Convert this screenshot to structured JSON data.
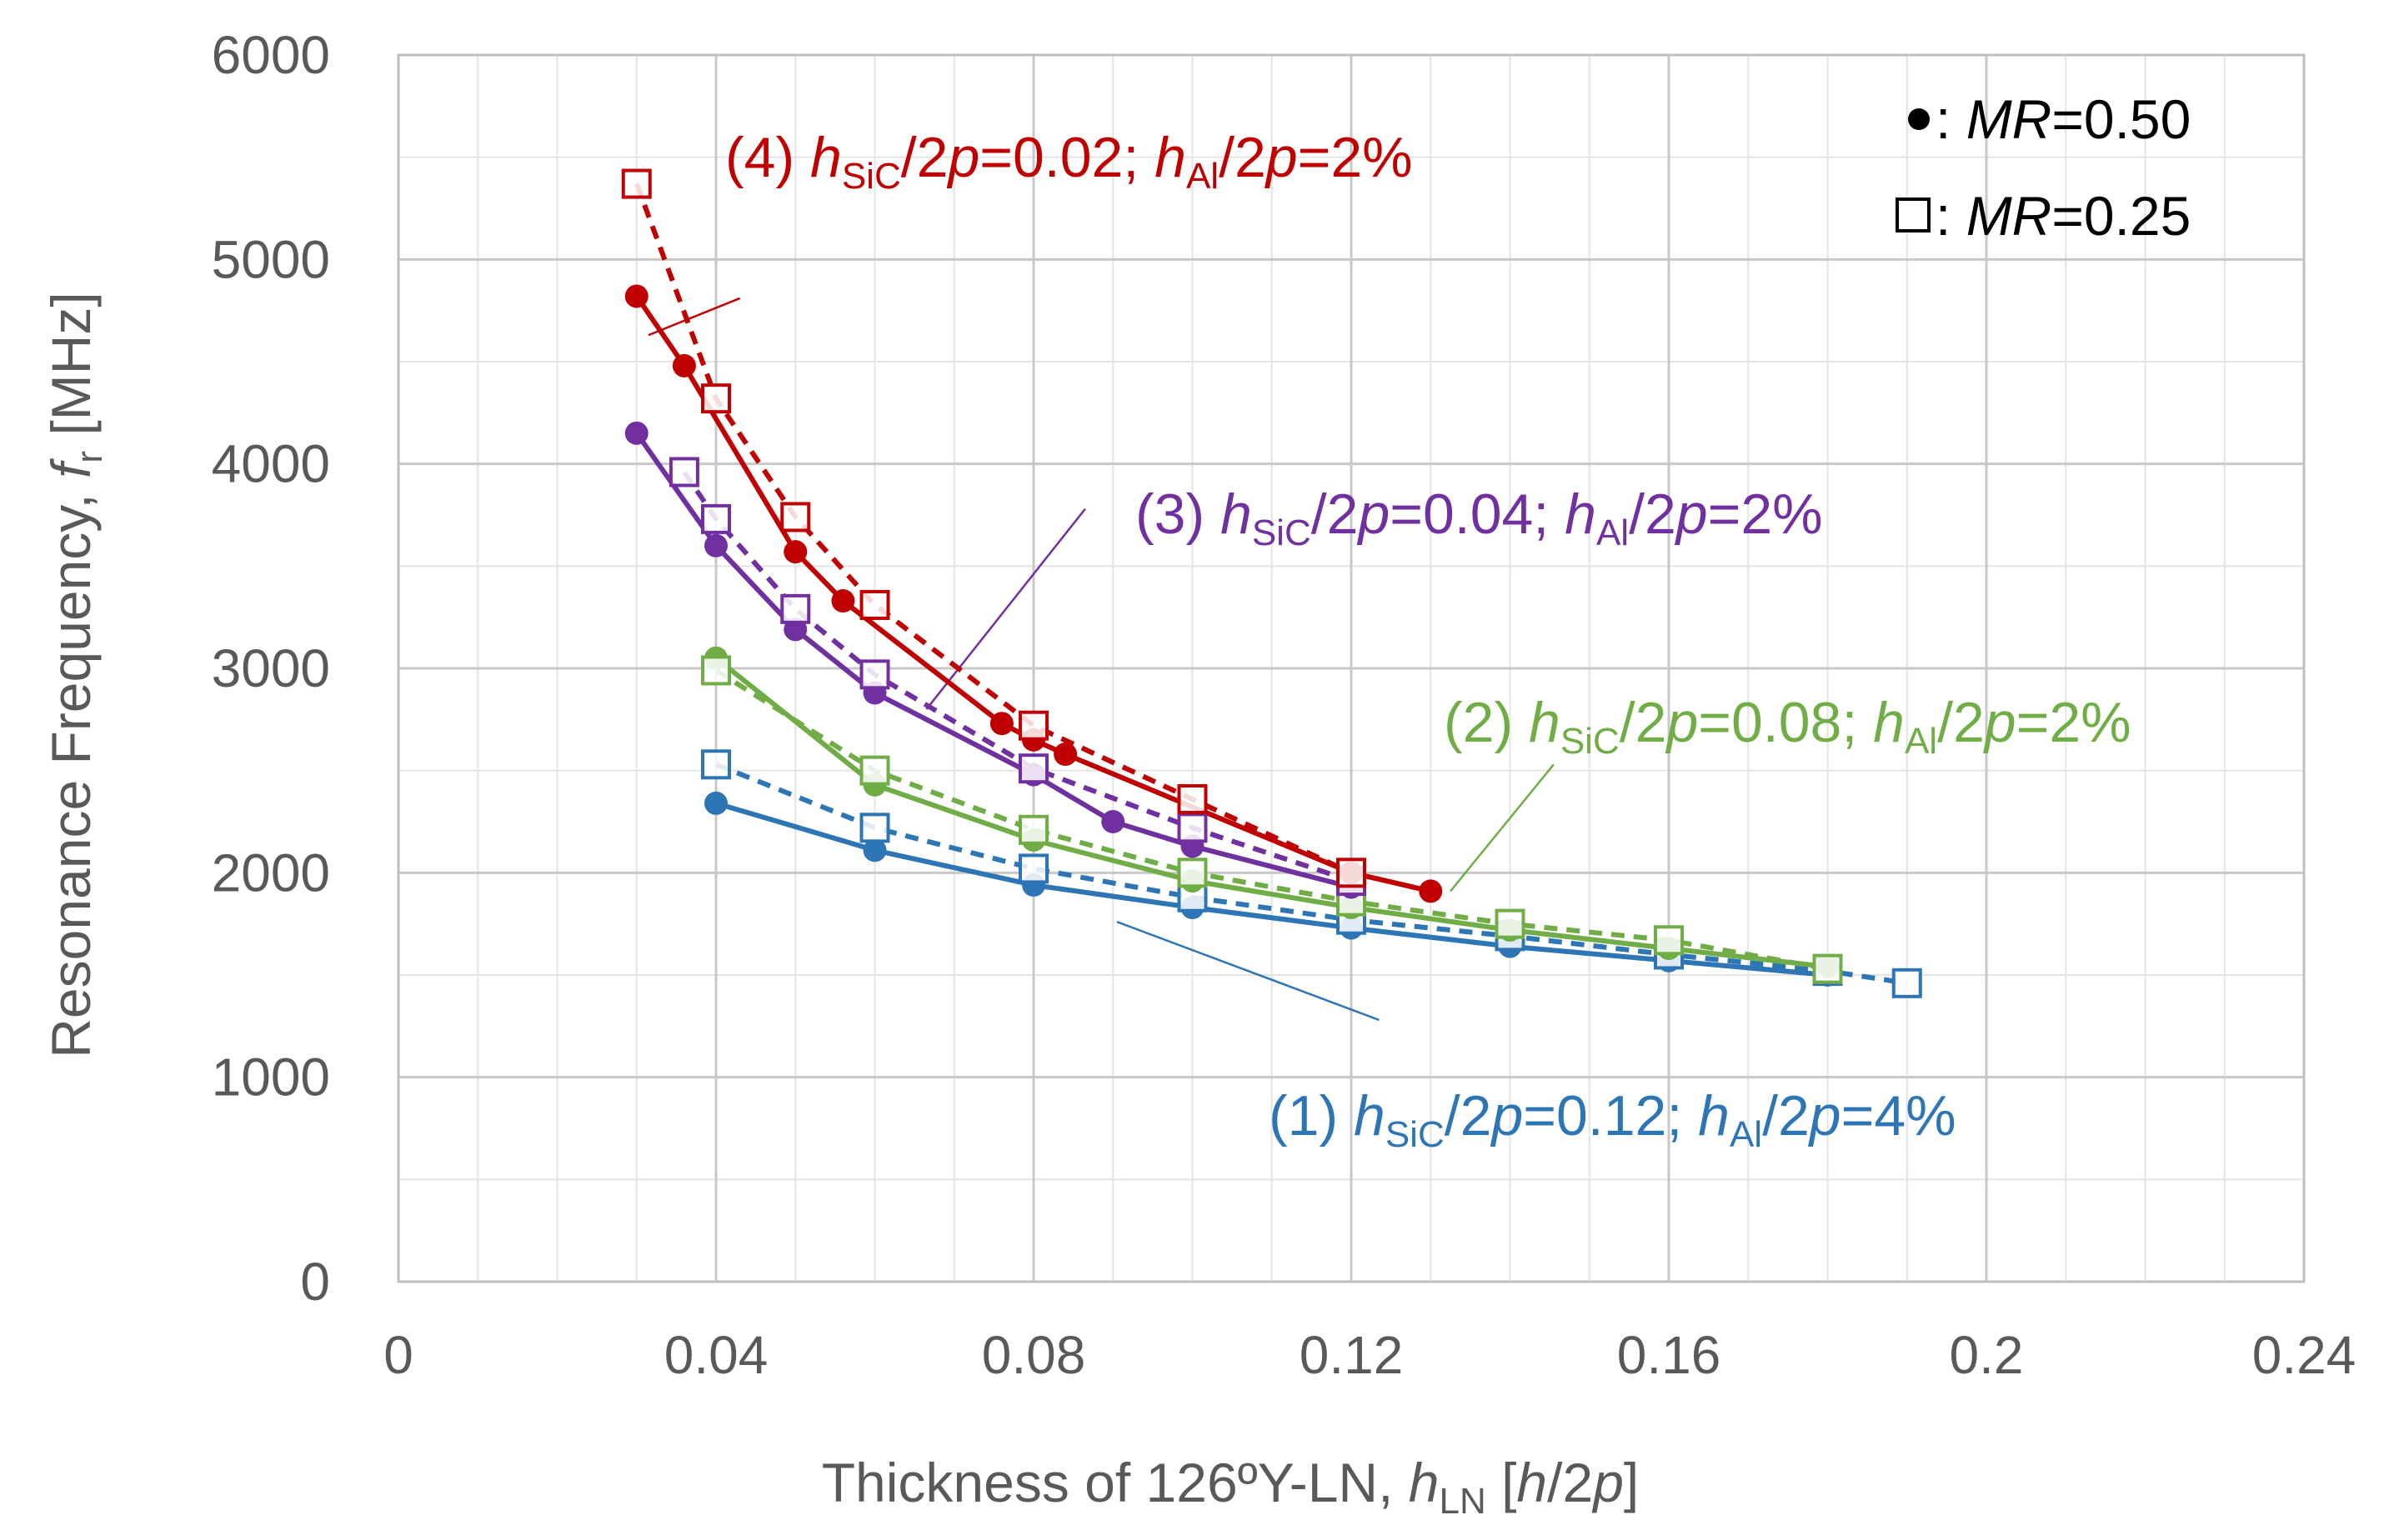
{
  "chart_data": {
    "type": "line",
    "title": "",
    "xlabel": {
      "main": "Thickness of 126ºY-LN, ",
      "var": "h",
      "sub": "LN",
      "unit_open": " [",
      "unit_var": "h",
      "unit_rest": "/2",
      "unit_p": "p",
      "unit_close": "]"
    },
    "ylabel": {
      "main": "Resonance Frequency, ",
      "var": "f",
      "sub": "r",
      "unit": "  [MHz]"
    },
    "xlim": [
      0,
      0.24
    ],
    "ylim": [
      0,
      6000
    ],
    "x_major_ticks": [
      0,
      0.04,
      0.08,
      0.12,
      0.16,
      0.2,
      0.24
    ],
    "x_tick_labels": [
      "0",
      "0.04",
      "0.08",
      "0.12",
      "0.16",
      "0.2",
      "0.24"
    ],
    "x_minor_step": 0.01,
    "y_major_ticks": [
      0,
      1000,
      2000,
      3000,
      4000,
      5000,
      6000
    ],
    "y_tick_labels": [
      "0",
      "1000",
      "2000",
      "3000",
      "4000",
      "5000",
      "6000"
    ],
    "y_minor_step": 500,
    "grid": true,
    "legend": {
      "position": "top-right",
      "entries": [
        {
          "marker": "filled-circle",
          "prefix": " : ",
          "var": "MR",
          "value": "=0.50"
        },
        {
          "marker": "open-square",
          "prefix": " : ",
          "var": "MR",
          "value": "=0.25"
        }
      ]
    },
    "series": [
      {
        "name": "(1) MR=0.50",
        "group": 1,
        "mr": "0.50",
        "color": "#2E75B6",
        "marker": "circle",
        "dash": false,
        "x": [
          0.04,
          0.06,
          0.08,
          0.1,
          0.12,
          0.14,
          0.16,
          0.18
        ],
        "y": [
          2340,
          2110,
          1940,
          1830,
          1730,
          1640,
          1570,
          1500
        ]
      },
      {
        "name": "(1) MR=0.25",
        "group": 1,
        "mr": "0.25",
        "color": "#2E75B6",
        "marker": "square",
        "dash": true,
        "x": [
          0.04,
          0.06,
          0.08,
          0.1,
          0.12,
          0.14,
          0.16,
          0.18,
          0.19
        ],
        "y": [
          2530,
          2220,
          2020,
          1880,
          1770,
          1690,
          1600,
          1520,
          1460
        ]
      },
      {
        "name": "(2) MR=0.50",
        "group": 2,
        "mr": "0.50",
        "color": "#70AD47",
        "marker": "circle",
        "dash": false,
        "x": [
          0.04,
          0.06,
          0.08,
          0.1,
          0.12,
          0.14,
          0.16,
          0.18
        ],
        "y": [
          3050,
          2430,
          2160,
          1960,
          1830,
          1720,
          1630,
          1540
        ]
      },
      {
        "name": "(2) MR=0.25",
        "group": 2,
        "mr": "0.25",
        "color": "#70AD47",
        "marker": "square",
        "dash": true,
        "x": [
          0.04,
          0.06,
          0.08,
          0.1,
          0.12,
          0.14,
          0.16,
          0.18
        ],
        "y": [
          2990,
          2500,
          2210,
          2000,
          1860,
          1750,
          1670,
          1530
        ]
      },
      {
        "name": "(3) MR=0.50",
        "group": 3,
        "mr": "0.50",
        "color": "#7030A0",
        "marker": "circle",
        "dash": false,
        "x": [
          0.03,
          0.04,
          0.05,
          0.06,
          0.08,
          0.09,
          0.1,
          0.12
        ],
        "y": [
          4150,
          3600,
          3190,
          2880,
          2480,
          2250,
          2130,
          1930
        ]
      },
      {
        "name": "(3) MR=0.25",
        "group": 3,
        "mr": "0.25",
        "color": "#7030A0",
        "marker": "square",
        "dash": true,
        "x": [
          0.036,
          0.04,
          0.05,
          0.06,
          0.08,
          0.1,
          0.12
        ],
        "y": [
          3960,
          3730,
          3290,
          2970,
          2510,
          2220,
          1960
        ]
      },
      {
        "name": "(4) MR=0.50",
        "group": 4,
        "mr": "0.50",
        "color": "#C00000",
        "marker": "circle",
        "dash": false,
        "x": [
          0.03,
          0.036,
          0.05,
          0.056,
          0.076,
          0.08,
          0.084,
          0.12,
          0.13
        ],
        "y": [
          4820,
          4480,
          3570,
          3330,
          2730,
          2650,
          2580,
          2000,
          1910
        ]
      },
      {
        "name": "(4) MR=0.25",
        "group": 4,
        "mr": "0.25",
        "color": "#C00000",
        "marker": "square",
        "dash": true,
        "x": [
          0.03,
          0.04,
          0.05,
          0.06,
          0.08,
          0.1,
          0.12
        ],
        "y": [
          5370,
          4320,
          3740,
          3310,
          2720,
          2360,
          2000
        ]
      }
    ],
    "annotations": [
      {
        "group": 4,
        "color": "#C00000",
        "prefix": "(4) ",
        "var1": "h",
        "sub1": "SiC",
        "mid": "/2",
        "p1": "p",
        "val1": "=0.02; ",
        "var2": "h",
        "sub2": "Al",
        "mid2": "/2",
        "p2": "p",
        "val2": "=2%",
        "leader_from": [
          0.043,
          4810
        ],
        "leader_to": [
          0.0315,
          4630
        ]
      },
      {
        "group": 3,
        "color": "#7030A0",
        "prefix": "(3) ",
        "var1": "h",
        "sub1": "SiC",
        "mid": "/2",
        "p1": "p",
        "val1": "=0.04; ",
        "var2": "h",
        "sub2": "Al",
        "mid2": "/2",
        "p2": "p",
        "val2": "=2%",
        "leader_from": [
          0.0865,
          3780
        ],
        "leader_to": [
          0.0665,
          2800
        ]
      },
      {
        "group": 2,
        "color": "#70AD47",
        "prefix": "(2) ",
        "var1": "h",
        "sub1": "SiC",
        "mid": "/2",
        "p1": "p",
        "val1": "=0.08; ",
        "var2": "h",
        "sub2": "Al",
        "mid2": "/2",
        "p2": "p",
        "val2": "=2%",
        "leader_from": [
          0.1455,
          2530
        ],
        "leader_to": [
          0.1325,
          1910
        ]
      },
      {
        "group": 1,
        "color": "#2E75B6",
        "prefix": "(1) ",
        "var1": "h",
        "sub1": "SiC",
        "mid": "/2",
        "p1": "p",
        "val1": "=0.12; ",
        "var2": "h",
        "sub2": "Al",
        "mid2": "/2",
        "p2": "p",
        "val2": "=4%",
        "leader_from": [
          0.0905,
          1760
        ],
        "leader_to": [
          0.1235,
          1280
        ]
      }
    ]
  }
}
